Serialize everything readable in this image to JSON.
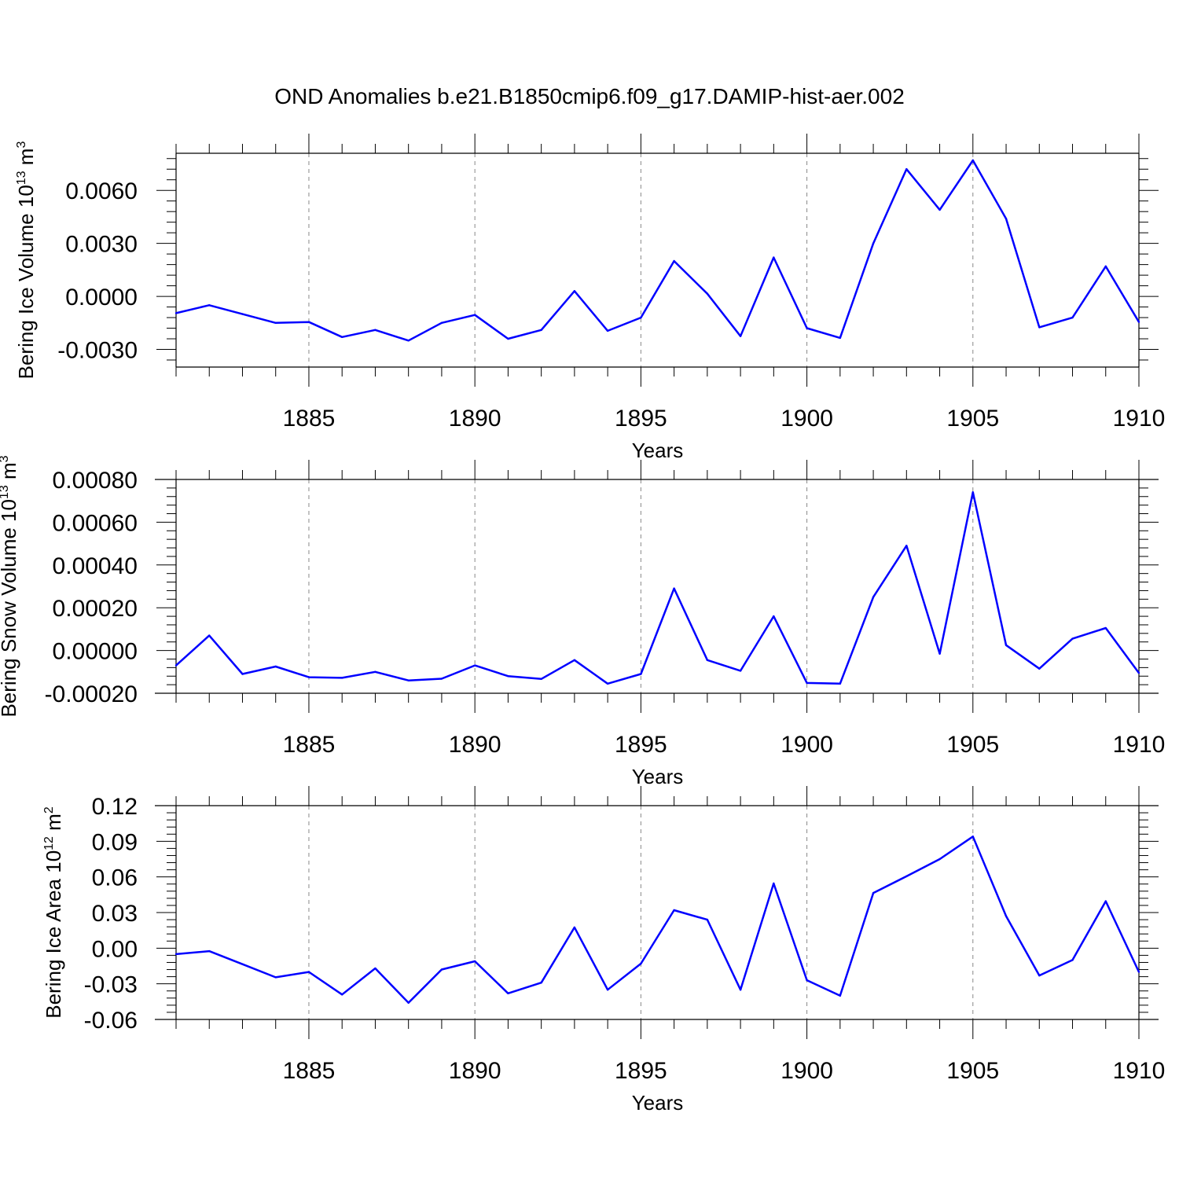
{
  "title": "OND Anomalies b.e21.B1850cmip6.f09_g17.DAMIP-hist-aer.002",
  "colors": {
    "series": "#0000ff",
    "axis": "#000000",
    "grid": "#888888",
    "background": "#ffffff"
  },
  "chart_data": [
    {
      "type": "line",
      "ylabel_main": "Bering Ice Volume 10",
      "ylabel_exp": "13",
      "ylabel_unit": "m",
      "ylabel_unit_exp": "3",
      "xlabel": "Years",
      "xlim": [
        1881,
        1910
      ],
      "ylim": [
        -0.004,
        0.0081
      ],
      "ytick_values": [
        -0.003,
        0,
        0.003,
        0.006
      ],
      "ytick_labels": [
        "-0.0030",
        "0.0000",
        "0.0030",
        "0.0060"
      ],
      "xtick_values": [
        1885,
        1890,
        1895,
        1900,
        1905,
        1910
      ],
      "xtick_labels": [
        "1885",
        "1890",
        "1895",
        "1900",
        "1905",
        "1910"
      ],
      "x": [
        1881,
        1882,
        1883,
        1884,
        1885,
        1886,
        1887,
        1888,
        1889,
        1890,
        1891,
        1892,
        1893,
        1894,
        1895,
        1896,
        1897,
        1898,
        1899,
        1900,
        1901,
        1902,
        1903,
        1904,
        1905,
        1906,
        1907,
        1908,
        1909,
        1910
      ],
      "values": [
        -0.00095,
        -0.0005,
        -0.001,
        -0.0015,
        -0.00145,
        -0.0023,
        -0.0019,
        -0.0025,
        -0.0015,
        -0.00105,
        -0.0024,
        -0.0019,
        0.0003,
        -0.00195,
        -0.0012,
        0.002,
        0.00015,
        -0.00225,
        0.0022,
        -0.0018,
        -0.00235,
        0.003,
        0.0072,
        0.0049,
        0.0077,
        0.0044,
        -0.00175,
        -0.0012,
        0.0017,
        -0.00145
      ],
      "grid": "vertical dashed at major x ticks"
    },
    {
      "type": "line",
      "ylabel_main": "Bering Snow Volume 10",
      "ylabel_exp": "13",
      "ylabel_unit": "m",
      "ylabel_unit_exp": "3",
      "xlabel": "Years",
      "xlim": [
        1881,
        1910
      ],
      "ylim": [
        -0.0002,
        0.0008
      ],
      "ytick_values": [
        -0.0002,
        0,
        0.0002,
        0.0004,
        0.0006,
        0.0008
      ],
      "ytick_labels": [
        "-0.00020",
        "0.00000",
        "0.00020",
        "0.00040",
        "0.00060",
        "0.00080"
      ],
      "xtick_values": [
        1885,
        1890,
        1895,
        1900,
        1905,
        1910
      ],
      "xtick_labels": [
        "1885",
        "1890",
        "1895",
        "1900",
        "1905",
        "1910"
      ],
      "x": [
        1881,
        1882,
        1883,
        1884,
        1885,
        1886,
        1887,
        1888,
        1889,
        1890,
        1891,
        1892,
        1893,
        1894,
        1895,
        1896,
        1897,
        1898,
        1899,
        1900,
        1901,
        1902,
        1903,
        1904,
        1905,
        1906,
        1907,
        1908,
        1909,
        1910
      ],
      "values": [
        -7e-05,
        7e-05,
        -0.00011,
        -7.5e-05,
        -0.000125,
        -0.000128,
        -0.0001,
        -0.00014,
        -0.000132,
        -7e-05,
        -0.00012,
        -0.000133,
        -4.5e-05,
        -0.000155,
        -0.00011,
        0.00029,
        -4.5e-05,
        -9.5e-05,
        0.00016,
        -0.000152,
        -0.000155,
        0.00025,
        0.00049,
        -1.5e-05,
        0.00074,
        2.5e-05,
        -8.5e-05,
        5.5e-05,
        0.000105,
        -0.000105
      ],
      "grid": "vertical dashed at major x ticks"
    },
    {
      "type": "line",
      "ylabel_main": "Bering Ice Area 10",
      "ylabel_exp": "12",
      "ylabel_unit": "m",
      "ylabel_unit_exp": "2",
      "xlabel": "Years",
      "xlim": [
        1881,
        1910
      ],
      "ylim": [
        -0.06,
        0.12
      ],
      "ytick_values": [
        -0.06,
        -0.03,
        0,
        0.03,
        0.06,
        0.09,
        0.12
      ],
      "ytick_labels": [
        "-0.06",
        "-0.03",
        "0.00",
        "0.03",
        "0.06",
        "0.09",
        "0.12"
      ],
      "xtick_values": [
        1885,
        1890,
        1895,
        1900,
        1905,
        1910
      ],
      "xtick_labels": [
        "1885",
        "1890",
        "1895",
        "1900",
        "1905",
        "1910"
      ],
      "x": [
        1881,
        1882,
        1883,
        1884,
        1885,
        1886,
        1887,
        1888,
        1889,
        1890,
        1891,
        1892,
        1893,
        1894,
        1895,
        1896,
        1897,
        1898,
        1899,
        1900,
        1901,
        1902,
        1903,
        1904,
        1905,
        1906,
        1907,
        1908,
        1909,
        1910
      ],
      "values": [
        -0.005,
        -0.0025,
        -0.0135,
        -0.0245,
        -0.02,
        -0.039,
        -0.017,
        -0.046,
        -0.018,
        -0.011,
        -0.038,
        -0.029,
        0.0175,
        -0.035,
        -0.013,
        0.032,
        0.024,
        -0.035,
        0.0545,
        -0.027,
        -0.04,
        0.0465,
        0.0605,
        0.075,
        0.094,
        0.027,
        -0.023,
        -0.01,
        0.0395,
        -0.02
      ],
      "grid": "vertical dashed at major x ticks"
    }
  ]
}
